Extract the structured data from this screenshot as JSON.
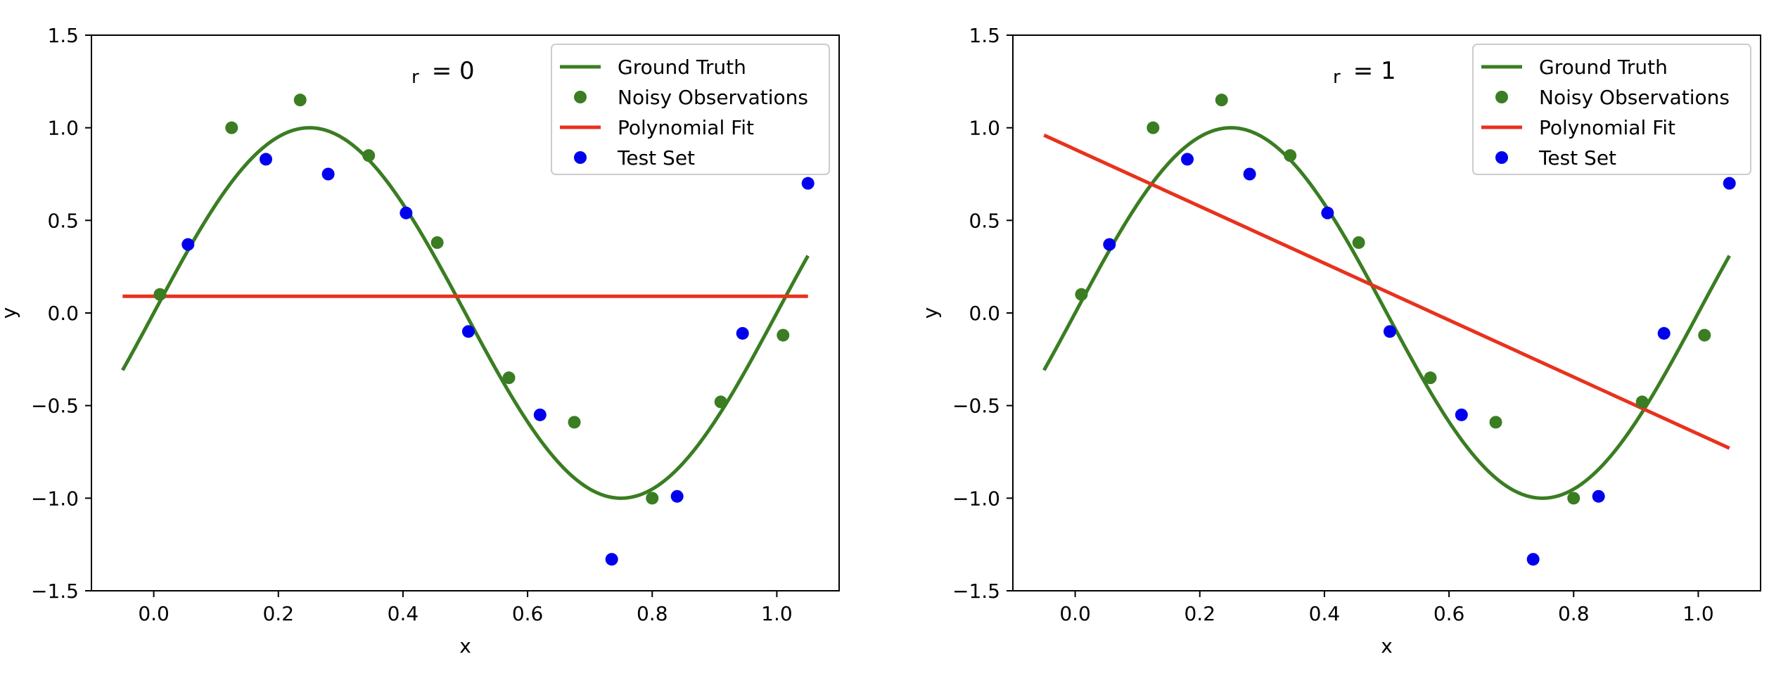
{
  "colors": {
    "ground_truth": "#3a7d22",
    "noisy": "#3a7d22",
    "fit": "#e8321e",
    "test": "#0000ee"
  },
  "chart_data": [
    {
      "type": "line",
      "xlabel": "x",
      "ylabel": "y",
      "xlim": [
        -0.1,
        1.1
      ],
      "ylim": [
        -1.5,
        1.5
      ],
      "xticks": [
        0.0,
        0.2,
        0.4,
        0.6,
        0.8,
        1.0
      ],
      "xtick_labels": [
        "0.0",
        "0.2",
        "0.4",
        "0.6",
        "0.8",
        "1.0"
      ],
      "yticks": [
        -1.5,
        -1.0,
        -0.5,
        0.0,
        0.5,
        1.0,
        1.5
      ],
      "ytick_labels": [
        "−1.5",
        "−1.0",
        "−0.5",
        "0.0",
        "0.5",
        "1.0",
        "1.5"
      ],
      "grid": false,
      "legend_position": "top-right",
      "annotation": {
        "sub": "r",
        "text": "= 0"
      },
      "series": [
        {
          "name": "Ground Truth",
          "kind": "line",
          "function": "sin(2*pi*x)",
          "x_range": [
            -0.05,
            1.05
          ]
        },
        {
          "name": "Noisy Observations",
          "kind": "scatter",
          "x": [
            0.01,
            0.125,
            0.235,
            0.345,
            0.455,
            0.57,
            0.675,
            0.8,
            0.91,
            1.01
          ],
          "y": [
            0.1,
            1.0,
            1.15,
            0.85,
            0.38,
            -0.35,
            -0.59,
            -1.0,
            -0.48,
            -0.12
          ]
        },
        {
          "name": "Polynomial Fit",
          "kind": "line",
          "x": [
            -0.05,
            1.05
          ],
          "y": [
            0.09,
            0.09
          ]
        },
        {
          "name": "Test Set",
          "kind": "scatter",
          "x": [
            0.055,
            0.18,
            0.28,
            0.405,
            0.505,
            0.62,
            0.735,
            0.84,
            0.945,
            1.05
          ],
          "y": [
            0.37,
            0.83,
            0.75,
            0.54,
            -0.1,
            -0.55,
            -1.33,
            -0.99,
            -0.11,
            0.7
          ]
        }
      ]
    },
    {
      "type": "line",
      "xlabel": "x",
      "ylabel": "y",
      "xlim": [
        -0.1,
        1.1
      ],
      "ylim": [
        -1.5,
        1.5
      ],
      "xticks": [
        0.0,
        0.2,
        0.4,
        0.6,
        0.8,
        1.0
      ],
      "xtick_labels": [
        "0.0",
        "0.2",
        "0.4",
        "0.6",
        "0.8",
        "1.0"
      ],
      "yticks": [
        -1.5,
        -1.0,
        -0.5,
        0.0,
        0.5,
        1.0,
        1.5
      ],
      "ytick_labels": [
        "−1.5",
        "−1.0",
        "−0.5",
        "0.0",
        "0.5",
        "1.0",
        "1.5"
      ],
      "grid": false,
      "legend_position": "top-right",
      "annotation": {
        "sub": "r",
        "text": "= 1"
      },
      "series": [
        {
          "name": "Ground Truth",
          "kind": "line",
          "function": "sin(2*pi*x)",
          "x_range": [
            -0.05,
            1.05
          ]
        },
        {
          "name": "Noisy Observations",
          "kind": "scatter",
          "x": [
            0.01,
            0.125,
            0.235,
            0.345,
            0.455,
            0.57,
            0.675,
            0.8,
            0.91,
            1.01
          ],
          "y": [
            0.1,
            1.0,
            1.15,
            0.85,
            0.38,
            -0.35,
            -0.59,
            -1.0,
            -0.48,
            -0.12
          ]
        },
        {
          "name": "Polynomial Fit",
          "kind": "line",
          "x": [
            -0.05,
            1.05
          ],
          "y": [
            0.96,
            -0.73
          ]
        },
        {
          "name": "Test Set",
          "kind": "scatter",
          "x": [
            0.055,
            0.18,
            0.28,
            0.405,
            0.505,
            0.62,
            0.735,
            0.84,
            0.945,
            1.05
          ],
          "y": [
            0.37,
            0.83,
            0.75,
            0.54,
            -0.1,
            -0.55,
            -1.33,
            -0.99,
            -0.11,
            0.7
          ]
        }
      ]
    }
  ]
}
